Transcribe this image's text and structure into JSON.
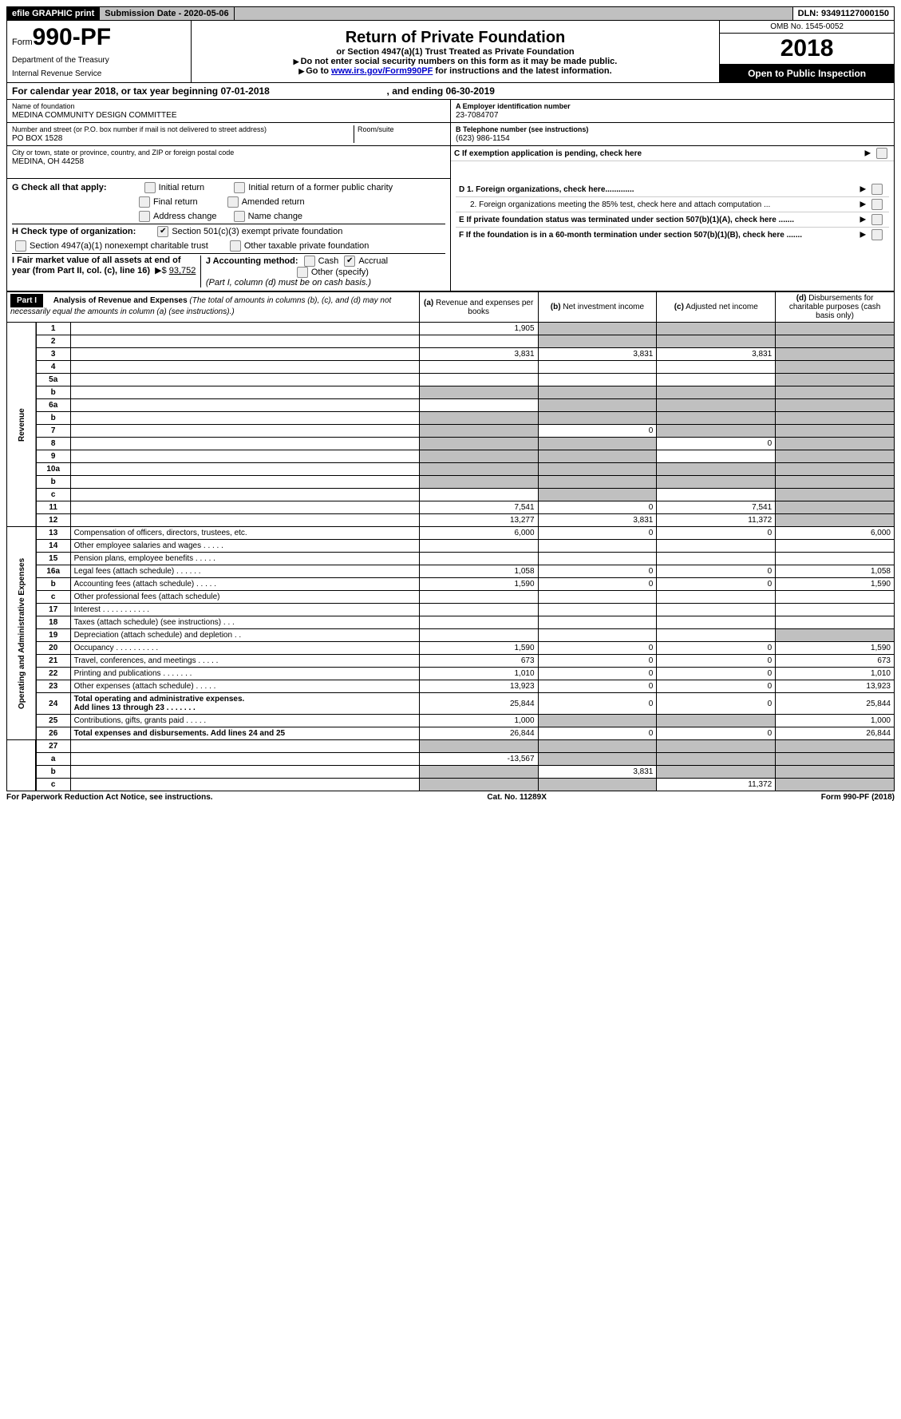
{
  "topbar": {
    "efile": "efile GRAPHIC print",
    "subdate_label": "Submission Date - ",
    "subdate": "2020-05-06",
    "dln_label": "DLN: ",
    "dln": "93491127000150"
  },
  "header": {
    "form_prefix": "Form",
    "form_no": "990-PF",
    "dept1": "Department of the Treasury",
    "dept2": "Internal Revenue Service",
    "title": "Return of Private Foundation",
    "sub1": "or Section 4947(a)(1) Trust Treated as Private Foundation",
    "sub2": "Do not enter social security numbers on this form as it may be made public.",
    "sub3_pre": "Go to ",
    "sub3_link": "www.irs.gov/Form990PF",
    "sub3_post": " for instructions and the latest information.",
    "omb": "OMB No. 1545-0052",
    "year": "2018",
    "open": "Open to Public Inspection"
  },
  "calendar": {
    "text1": "For calendar year 2018, or tax year beginning ",
    "begin": "07-01-2018",
    "text2": ", and ending ",
    "end": "06-30-2019"
  },
  "foundation": {
    "name_lbl": "Name of foundation",
    "name": "MEDINA COMMUNITY DESIGN COMMITTEE",
    "street_lbl": "Number and street (or P.O. box number if mail is not delivered to street address)",
    "room_lbl": "Room/suite",
    "street": "PO BOX 1528",
    "city_lbl": "City or town, state or province, country, and ZIP or foreign postal code",
    "city": "MEDINA, OH  44258"
  },
  "right": {
    "a_lbl": "A Employer identification number",
    "a_val": "23-7084707",
    "b_lbl": "B Telephone number (see instructions)",
    "b_val": "(623) 986-1154",
    "c_lbl": "C  If exemption application is pending, check here",
    "d1": "D 1. Foreign organizations, check here.............",
    "d2": "2. Foreign organizations meeting the 85% test, check here and attach computation ...",
    "e": "E  If private foundation status was terminated under section 507(b)(1)(A), check here .......",
    "f": "F  If the foundation is in a 60-month termination under section 507(b)(1)(B), check here ......."
  },
  "g": {
    "label": "G Check all that apply:",
    "o1": "Initial return",
    "o2": "Initial return of a former public charity",
    "o3": "Final return",
    "o4": "Amended return",
    "o5": "Address change",
    "o6": "Name change"
  },
  "h": {
    "label": "H Check type of organization:",
    "o1": "Section 501(c)(3) exempt private foundation",
    "o2": "Section 4947(a)(1) nonexempt charitable trust",
    "o3": "Other taxable private foundation"
  },
  "ij": {
    "i_lbl": "I Fair market value of all assets at end of year (from Part II, col. (c), line 16)",
    "i_val": "93,752",
    "j_lbl": "J Accounting method:",
    "j_cash": "Cash",
    "j_accrual": "Accrual",
    "j_other": "Other (specify)",
    "j_note": "(Part I, column (d) must be on cash basis.)"
  },
  "part1": {
    "tag": "Part I",
    "title": "Analysis of Revenue and Expenses",
    "note": "(The total of amounts in columns (b), (c), and (d) may not necessarily equal the amounts in column (a) (see instructions).)",
    "col_a": "Revenue and expenses per books",
    "col_b": "Net investment income",
    "col_c": "Adjusted net income",
    "col_d": "Disbursements for charitable purposes (cash basis only)"
  },
  "sections": {
    "revenue": "Revenue",
    "expenses": "Operating and Administrative Expenses"
  },
  "rows": [
    {
      "n": "1",
      "d": "",
      "a": "1,905",
      "b": "",
      "c": "",
      "ga": false,
      "gb": true,
      "gc": true,
      "gd": true
    },
    {
      "n": "2",
      "d": "",
      "a": "",
      "b": "",
      "c": "",
      "ga": false,
      "gb": true,
      "gc": true,
      "gd": true
    },
    {
      "n": "3",
      "d": "",
      "a": "3,831",
      "b": "3,831",
      "c": "3,831",
      "ga": false,
      "gb": false,
      "gc": false,
      "gd": true
    },
    {
      "n": "4",
      "d": "",
      "a": "",
      "b": "",
      "c": "",
      "ga": false,
      "gb": false,
      "gc": false,
      "gd": true
    },
    {
      "n": "5a",
      "d": "",
      "a": "",
      "b": "",
      "c": "",
      "ga": false,
      "gb": false,
      "gc": false,
      "gd": true
    },
    {
      "n": "b",
      "d": "",
      "a": "",
      "b": "",
      "c": "",
      "ga": true,
      "gb": true,
      "gc": true,
      "gd": true
    },
    {
      "n": "6a",
      "d": "",
      "a": "",
      "b": "",
      "c": "",
      "ga": false,
      "gb": true,
      "gc": true,
      "gd": true
    },
    {
      "n": "b",
      "d": "",
      "a": "",
      "b": "",
      "c": "",
      "ga": true,
      "gb": true,
      "gc": true,
      "gd": true
    },
    {
      "n": "7",
      "d": "",
      "a": "",
      "b": "0",
      "c": "",
      "ga": true,
      "gb": false,
      "gc": true,
      "gd": true
    },
    {
      "n": "8",
      "d": "",
      "a": "",
      "b": "",
      "c": "0",
      "ga": true,
      "gb": true,
      "gc": false,
      "gd": true
    },
    {
      "n": "9",
      "d": "",
      "a": "",
      "b": "",
      "c": "",
      "ga": true,
      "gb": true,
      "gc": false,
      "gd": true
    },
    {
      "n": "10a",
      "d": "",
      "a": "",
      "b": "",
      "c": "",
      "ga": true,
      "gb": true,
      "gc": true,
      "gd": true
    },
    {
      "n": "b",
      "d": "",
      "a": "",
      "b": "",
      "c": "",
      "ga": true,
      "gb": true,
      "gc": true,
      "gd": true
    },
    {
      "n": "c",
      "d": "",
      "a": "",
      "b": "",
      "c": "",
      "ga": false,
      "gb": true,
      "gc": false,
      "gd": true
    },
    {
      "n": "11",
      "d": "",
      "a": "7,541",
      "b": "0",
      "c": "7,541",
      "ga": false,
      "gb": false,
      "gc": false,
      "gd": true
    },
    {
      "n": "12",
      "d": "",
      "a": "13,277",
      "b": "3,831",
      "c": "11,372",
      "ga": false,
      "gb": false,
      "gc": false,
      "gd": true,
      "bold": true
    }
  ],
  "exp_rows": [
    {
      "n": "13",
      "d": "6,000",
      "a": "6,000",
      "b": "0",
      "c": "0"
    },
    {
      "n": "14",
      "d": "",
      "a": "",
      "b": "",
      "c": ""
    },
    {
      "n": "15",
      "d": "",
      "a": "",
      "b": "",
      "c": ""
    },
    {
      "n": "16a",
      "d": "1,058",
      "a": "1,058",
      "b": "0",
      "c": "0"
    },
    {
      "n": "b",
      "d": "1,590",
      "a": "1,590",
      "b": "0",
      "c": "0"
    },
    {
      "n": "c",
      "d": "",
      "a": "",
      "b": "",
      "c": ""
    },
    {
      "n": "17",
      "d": "",
      "a": "",
      "b": "",
      "c": ""
    },
    {
      "n": "18",
      "d": "",
      "a": "",
      "b": "",
      "c": ""
    },
    {
      "n": "19",
      "d": "",
      "a": "",
      "b": "",
      "c": "",
      "gd": true
    },
    {
      "n": "20",
      "d": "1,590",
      "a": "1,590",
      "b": "0",
      "c": "0"
    },
    {
      "n": "21",
      "d": "673",
      "a": "673",
      "b": "0",
      "c": "0"
    },
    {
      "n": "22",
      "d": "1,010",
      "a": "1,010",
      "b": "0",
      "c": "0"
    },
    {
      "n": "23",
      "d": "13,923",
      "a": "13,923",
      "b": "0",
      "c": "0"
    },
    {
      "n": "24",
      "d": "25,844",
      "a": "25,844",
      "b": "0",
      "c": "0",
      "bold": true
    },
    {
      "n": "25",
      "d": "1,000",
      "a": "1,000",
      "b": "",
      "c": "",
      "gb": true,
      "gc": true
    },
    {
      "n": "26",
      "d": "26,844",
      "a": "26,844",
      "b": "0",
      "c": "0",
      "bold": true
    }
  ],
  "sub_rows": [
    {
      "n": "27",
      "d": "",
      "a": "",
      "b": "",
      "c": "",
      "ga": true,
      "gb": true,
      "gc": true,
      "gd": true
    },
    {
      "n": "a",
      "d": "",
      "a": "-13,567",
      "b": "",
      "c": "",
      "bold": true,
      "gb": true,
      "gc": true,
      "gd": true
    },
    {
      "n": "b",
      "d": "",
      "a": "",
      "b": "3,831",
      "c": "",
      "bold": true,
      "ga": true,
      "gc": true,
      "gd": true
    },
    {
      "n": "c",
      "d": "",
      "a": "",
      "b": "",
      "c": "11,372",
      "bold": true,
      "ga": true,
      "gb": true,
      "gd": true
    }
  ],
  "footer": {
    "left": "For Paperwork Reduction Act Notice, see instructions.",
    "mid": "Cat. No. 11289X",
    "right": "Form 990-PF (2018)"
  }
}
